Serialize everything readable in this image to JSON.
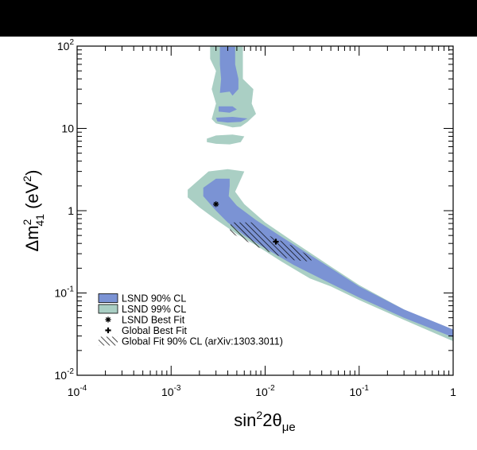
{
  "chart_data": {
    "type": "area",
    "xlabel": {
      "base": "sin",
      "sup": "2",
      "mid": "2θ",
      "sub": "μe"
    },
    "ylabel": {
      "base": "Δm",
      "sup": "2",
      "sub": "41",
      "unit": " (eV",
      "unit_sup": "2",
      "close": ")"
    },
    "x_scale": "log",
    "y_scale": "log",
    "xlim": [
      0.0001,
      1
    ],
    "ylim": [
      0.01,
      100
    ],
    "grid": false,
    "legend_position": "bottom-left",
    "x_ticks": [
      {
        "value": 0.0001,
        "base": "10",
        "exp": "-4"
      },
      {
        "value": 0.001,
        "base": "10",
        "exp": "-3"
      },
      {
        "value": 0.01,
        "base": "10",
        "exp": "-2"
      },
      {
        "value": 0.1,
        "base": "10",
        "exp": "-1"
      },
      {
        "value": 1,
        "base": "1",
        "exp": ""
      }
    ],
    "y_ticks": [
      {
        "value": 0.01,
        "base": "10",
        "exp": "-2"
      },
      {
        "value": 0.1,
        "base": "10",
        "exp": "-1"
      },
      {
        "value": 1,
        "base": "1",
        "exp": ""
      },
      {
        "value": 10,
        "base": "10",
        "exp": ""
      },
      {
        "value": 100,
        "base": "10",
        "exp": "2"
      }
    ],
    "series": [
      {
        "name": "LSND 99% CL",
        "kind": "region",
        "color": "#aacfc4",
        "polygons": [
          [
            [
              0.0015,
              1.8
            ],
            [
              0.0025,
              3.0
            ],
            [
              0.004,
              3.2
            ],
            [
              0.006,
              3.0
            ],
            [
              0.0055,
              2.4
            ],
            [
              0.0048,
              1.7
            ],
            [
              0.006,
              1.2
            ],
            [
              0.01,
              0.72
            ],
            [
              0.02,
              0.42
            ],
            [
              0.05,
              0.21
            ],
            [
              0.1,
              0.125
            ],
            [
              0.3,
              0.063
            ],
            [
              1.0,
              0.032
            ],
            [
              1.0,
              0.026
            ],
            [
              0.3,
              0.047
            ],
            [
              0.1,
              0.082
            ],
            [
              0.05,
              0.12
            ],
            [
              0.03,
              0.15
            ],
            [
              0.015,
              0.24
            ],
            [
              0.008,
              0.38
            ],
            [
              0.005,
              0.52
            ],
            [
              0.003,
              0.78
            ],
            [
              0.002,
              1.1
            ],
            [
              0.0015,
              1.45
            ]
          ],
          [
            [
              0.0026,
              100
            ],
            [
              0.0058,
              100
            ],
            [
              0.0058,
              40
            ],
            [
              0.0075,
              30
            ],
            [
              0.0072,
              20
            ],
            [
              0.008,
              15
            ],
            [
              0.0065,
              12
            ],
            [
              0.0055,
              10.5
            ],
            [
              0.0045,
              10.3
            ],
            [
              0.0036,
              11
            ],
            [
              0.003,
              11.5
            ],
            [
              0.0027,
              13
            ],
            [
              0.003,
              20
            ],
            [
              0.0027,
              30
            ],
            [
              0.003,
              50
            ],
            [
              0.0026,
              70
            ]
          ],
          [
            [
              0.0024,
              7.5
            ],
            [
              0.003,
              8.2
            ],
            [
              0.0045,
              8.4
            ],
            [
              0.006,
              8.0
            ],
            [
              0.0055,
              6.8
            ],
            [
              0.0042,
              6.4
            ],
            [
              0.003,
              6.5
            ],
            [
              0.0024,
              6.8
            ]
          ]
        ]
      },
      {
        "name": "LSND 90% CL",
        "kind": "region",
        "color": "#7b93d4",
        "polygons": [
          [
            [
              0.0022,
              1.9
            ],
            [
              0.003,
              2.45
            ],
            [
              0.0042,
              2.45
            ],
            [
              0.0042,
              2.0
            ],
            [
              0.0041,
              1.5
            ],
            [
              0.005,
              1.15
            ],
            [
              0.008,
              0.77
            ],
            [
              0.015,
              0.48
            ],
            [
              0.05,
              0.2
            ],
            [
              0.1,
              0.12
            ],
            [
              0.3,
              0.063
            ],
            [
              1.0,
              0.036
            ],
            [
              1.0,
              0.029
            ],
            [
              0.3,
              0.05
            ],
            [
              0.1,
              0.088
            ],
            [
              0.05,
              0.13
            ],
            [
              0.02,
              0.22
            ],
            [
              0.01,
              0.35
            ],
            [
              0.006,
              0.5
            ],
            [
              0.004,
              0.72
            ],
            [
              0.003,
              1.0
            ],
            [
              0.0022,
              1.5
            ]
          ],
          [
            [
              0.0033,
              98
            ],
            [
              0.0048,
              98
            ],
            [
              0.0048,
              60
            ],
            [
              0.0052,
              40
            ],
            [
              0.0052,
              30
            ],
            [
              0.0045,
              25
            ],
            [
              0.0042,
              28
            ],
            [
              0.0033,
              27
            ],
            [
              0.0034,
              40
            ],
            [
              0.0033,
              60
            ]
          ],
          [
            [
              0.0032,
              18.5
            ],
            [
              0.0045,
              18.5
            ],
            [
              0.005,
              17
            ],
            [
              0.0042,
              15.5
            ],
            [
              0.0032,
              16
            ]
          ],
          [
            [
              0.003,
              13.5
            ],
            [
              0.0045,
              13.8
            ],
            [
              0.0065,
              13.2
            ],
            [
              0.0055,
              12.0
            ],
            [
              0.004,
              11.8
            ],
            [
              0.0031,
              12.2
            ]
          ]
        ]
      },
      {
        "name": "LSND Best Fit",
        "kind": "marker",
        "marker": "asterisk",
        "points": [
          [
            0.003,
            1.2
          ]
        ]
      },
      {
        "name": "Global Best Fit",
        "kind": "marker",
        "marker": "cross",
        "points": [
          [
            0.013,
            0.42
          ]
        ]
      },
      {
        "name": "Global Fit 90% CL (arXiv:1303.3011)",
        "kind": "hatched-region",
        "color": "#000000",
        "polygons": [
          [
            [
              0.0043,
              0.72
            ],
            [
              0.0072,
              0.72
            ],
            [
              0.01,
              0.52
            ],
            [
              0.02,
              0.37
            ],
            [
              0.031,
              0.27
            ],
            [
              0.031,
              0.24
            ],
            [
              0.02,
              0.25
            ],
            [
              0.013,
              0.29
            ],
            [
              0.008,
              0.37
            ],
            [
              0.0052,
              0.48
            ],
            [
              0.0042,
              0.55
            ]
          ]
        ]
      }
    ],
    "legend": [
      {
        "label": "LSND 90% CL",
        "swatch": "fill",
        "color": "#7b93d4"
      },
      {
        "label": "LSND 99% CL",
        "swatch": "fill",
        "color": "#aacfc4"
      },
      {
        "label": "LSND Best Fit",
        "swatch": "asterisk"
      },
      {
        "label": "Global Best Fit",
        "swatch": "cross"
      },
      {
        "label": "Global Fit 90% CL (arXiv:1303.3011)",
        "swatch": "hatch"
      }
    ]
  }
}
